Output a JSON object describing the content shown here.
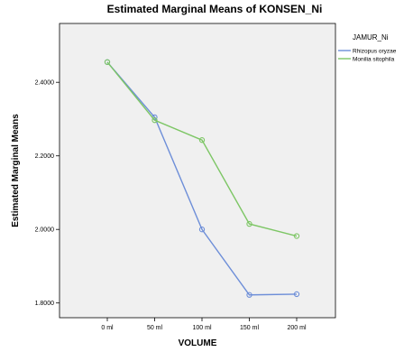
{
  "chart_data": {
    "type": "line",
    "title": "Estimated Marginal Means of KONSEN_Ni",
    "xlabel": "VOLUME",
    "ylabel": "Estimated Marginal Means",
    "categories": [
      "0 ml",
      "50 ml",
      "100 ml",
      "150 ml",
      "200 ml"
    ],
    "ylim": [
      1.76,
      2.56
    ],
    "yticks": [
      "1.8000",
      "2.0000",
      "2.2000",
      "2.4000"
    ],
    "ytick_values": [
      1.8,
      2.0,
      2.2,
      2.4
    ],
    "legend_title": "JAMUR_Ni",
    "legend_position": "right",
    "grid": false,
    "plot_background": "#f0f0f0",
    "series": [
      {
        "name": "Rhizopus oryzae",
        "color": "#6d8ed8",
        "values": [
          2.455,
          2.305,
          2.0,
          1.822,
          1.824
        ]
      },
      {
        "name": "Monilia sitophila",
        "color": "#7dc665",
        "values": [
          2.455,
          2.297,
          2.243,
          2.015,
          1.982
        ]
      }
    ]
  }
}
